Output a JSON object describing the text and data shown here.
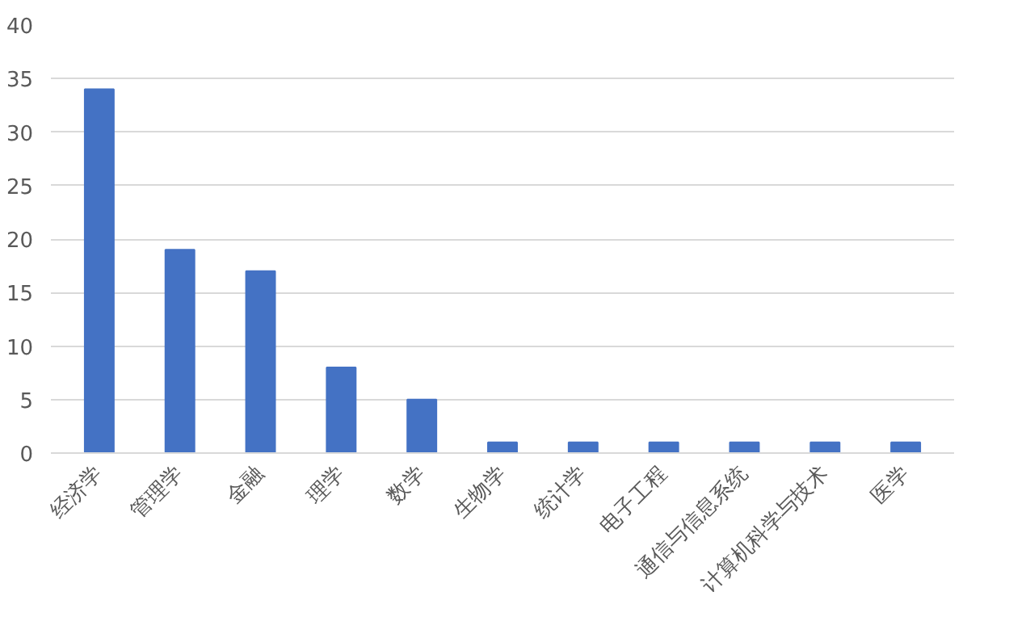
{
  "chart_data": {
    "type": "bar",
    "categories": [
      "经济学",
      "管理学",
      "金融",
      "理学",
      "数学",
      "生物学",
      "统计学",
      "电子工程",
      "通信与信息系统",
      "计算机科学与技术",
      "医学"
    ],
    "values": [
      34,
      19,
      17,
      8,
      5,
      1,
      1,
      1,
      1,
      1,
      1
    ],
    "color": "#4472c4",
    "ylim": [
      0,
      40
    ],
    "yticks": [
      0,
      5,
      10,
      15,
      20,
      25,
      30,
      35,
      40
    ],
    "grid": "y"
  }
}
